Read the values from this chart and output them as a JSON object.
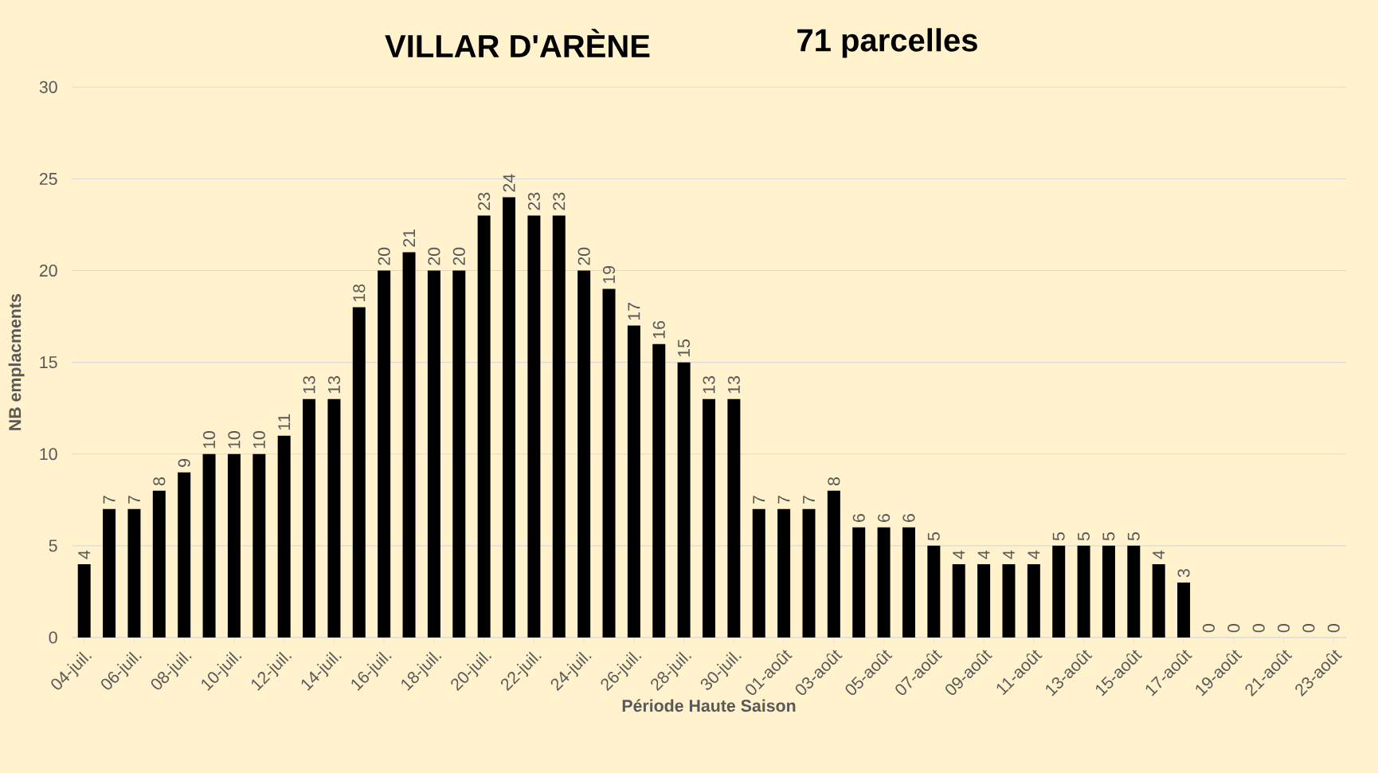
{
  "chart_data": {
    "type": "bar",
    "title": "VILLAR D'ARÈNE",
    "subtitle": "71 parcelles",
    "xlabel": "Période Haute Saison",
    "ylabel": "NB emplacments",
    "categories": [
      "04-juil.",
      null,
      "06-juil.",
      null,
      "08-juil.",
      null,
      "10-juil.",
      null,
      "12-juil.",
      null,
      "14-juil.",
      null,
      "16-juil.",
      null,
      "18-juil.",
      null,
      "20-juil.",
      null,
      "22-juil.",
      null,
      "24-juil.",
      null,
      "26-juil.",
      null,
      "28-juil.",
      null,
      "30-juil.",
      null,
      "01-août",
      null,
      "03-août",
      null,
      "05-août",
      null,
      "07-août",
      null,
      "09-août",
      null,
      "11-août",
      null,
      "13-août",
      null,
      "15-août",
      null,
      "17-août",
      null,
      "19-août",
      null,
      "21-août",
      null,
      "23-août"
    ],
    "values": [
      4,
      7,
      7,
      8,
      9,
      10,
      10,
      10,
      11,
      13,
      13,
      18,
      20,
      21,
      20,
      20,
      23,
      24,
      23,
      23,
      20,
      19,
      17,
      16,
      15,
      13,
      13,
      7,
      7,
      7,
      8,
      6,
      6,
      6,
      5,
      4,
      4,
      4,
      4,
      5,
      5,
      5,
      5,
      4,
      3,
      0,
      0,
      0,
      0,
      0,
      0
    ],
    "color": "#000000",
    "ylim": [
      0,
      30
    ],
    "yticks": [
      0,
      5,
      10,
      15,
      20,
      25,
      30
    ],
    "grid": "y",
    "data_labels": true
  }
}
